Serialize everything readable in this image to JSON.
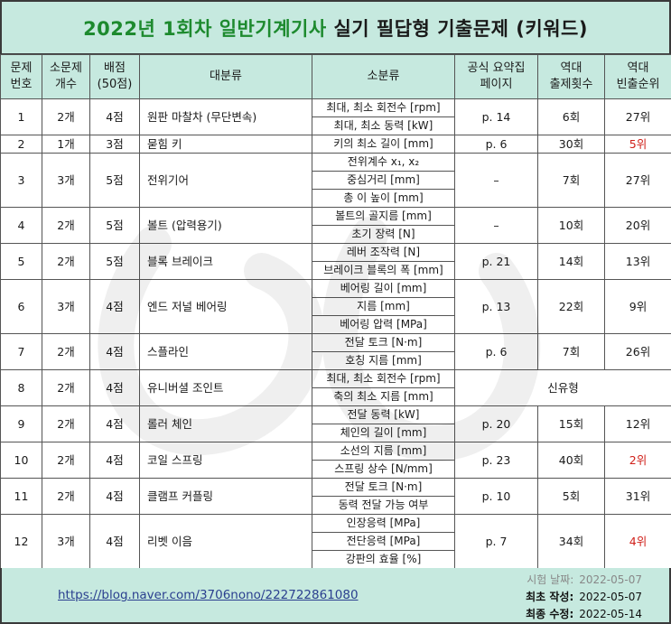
{
  "title": {
    "year": "2022년",
    "round": "1회차",
    "subject": "일반기계기사",
    "rest": "실기 필답형 기출문제 (키워드)"
  },
  "headers": {
    "no": [
      "문제",
      "번호"
    ],
    "count": [
      "소문제",
      "개수"
    ],
    "score": [
      "배점",
      "(50점)"
    ],
    "category": "대분류",
    "subcategory": "소분류",
    "page": [
      "공식 요약집",
      "페이지"
    ],
    "times": [
      "역대",
      "출제횟수"
    ],
    "rank": [
      "역대",
      "빈출순위"
    ]
  },
  "rows": [
    {
      "no": "1",
      "count": "2개",
      "score": "4점",
      "category": "원판 마찰차 (무단변속)",
      "subs": [
        "최대, 최소 회전수 [rpm]",
        "최대, 최소 동력 [kW]"
      ],
      "page": "p. 14",
      "times": "6회",
      "rank": "27위",
      "rank_red": false
    },
    {
      "no": "2",
      "count": "1개",
      "score": "3점",
      "category": "묻힘 키",
      "subs": [
        "키의 최소 길이 [mm]"
      ],
      "page": "p. 6",
      "times": "30회",
      "rank": "5위",
      "rank_red": true
    },
    {
      "no": "3",
      "count": "3개",
      "score": "5점",
      "category": "전위기어",
      "subs": [
        "전위계수 x₁, x₂",
        "중심거리 [mm]",
        "총 이 높이 [mm]"
      ],
      "page": "–",
      "times": "7회",
      "rank": "27위",
      "rank_red": false
    },
    {
      "no": "4",
      "count": "2개",
      "score": "5점",
      "category": "볼트 (압력용기)",
      "subs": [
        "볼트의 골지름 [mm]",
        "초기 장력 [N]"
      ],
      "page": "–",
      "times": "10회",
      "rank": "20위",
      "rank_red": false
    },
    {
      "no": "5",
      "count": "2개",
      "score": "5점",
      "category": "블록 브레이크",
      "subs": [
        "레버 조작력 [N]",
        "브레이크 블록의 폭 [mm]"
      ],
      "page": "p. 21",
      "times": "14회",
      "rank": "13위",
      "rank_red": false
    },
    {
      "no": "6",
      "count": "3개",
      "score": "4점",
      "category": "엔드 저널 베어링",
      "subs": [
        "베어링 길이 [mm]",
        "지름 [mm]",
        "베어링 압력 [MPa]"
      ],
      "page": "p. 13",
      "times": "22회",
      "rank": "9위",
      "rank_red": false
    },
    {
      "no": "7",
      "count": "2개",
      "score": "4점",
      "category": "스플라인",
      "subs": [
        "전달 토크 [N·m]",
        "호칭 지름 [mm]"
      ],
      "page": "p. 6",
      "times": "7회",
      "rank": "26위",
      "rank_red": false
    },
    {
      "no": "8",
      "count": "2개",
      "score": "4점",
      "category": "유니버셜 조인트",
      "subs": [
        "최대, 최소 회전수 [rpm]",
        "축의 최소 지름 [mm]"
      ],
      "merged": "신유형"
    },
    {
      "no": "9",
      "count": "2개",
      "score": "4점",
      "category": "롤러 체인",
      "subs": [
        "전달 동력 [kW]",
        "체인의 길이 [mm]"
      ],
      "page": "p. 20",
      "times": "15회",
      "rank": "12위",
      "rank_red": false
    },
    {
      "no": "10",
      "count": "2개",
      "score": "4점",
      "category": "코일 스프링",
      "subs": [
        "소선의 지름 [mm]",
        "스프링 상수 [N/mm]"
      ],
      "page": "p. 23",
      "times": "40회",
      "rank": "2위",
      "rank_red": true
    },
    {
      "no": "11",
      "count": "2개",
      "score": "4점",
      "category": "클램프 커플링",
      "subs": [
        "전달 토크 [N·m]",
        "동력 전달 가능 여부"
      ],
      "page": "p. 10",
      "times": "5회",
      "rank": "31위",
      "rank_red": false
    },
    {
      "no": "12",
      "count": "3개",
      "score": "4점",
      "category": "리벳 이음",
      "subs": [
        "인장응력 [MPa]",
        "전단응력 [MPa]",
        "강판의 효율 [%]"
      ],
      "page": "p. 7",
      "times": "34회",
      "rank": "4위",
      "rank_red": true
    }
  ],
  "footer": {
    "link": "https://blog.naver.com/3706nono/222722861080",
    "dates": [
      {
        "label": "시험 날짜:",
        "value": "2022-05-07"
      },
      {
        "label": "최초 작성:",
        "value": "2022-05-07"
      },
      {
        "label": "최종 수정:",
        "value": "2022-05-14"
      }
    ]
  }
}
